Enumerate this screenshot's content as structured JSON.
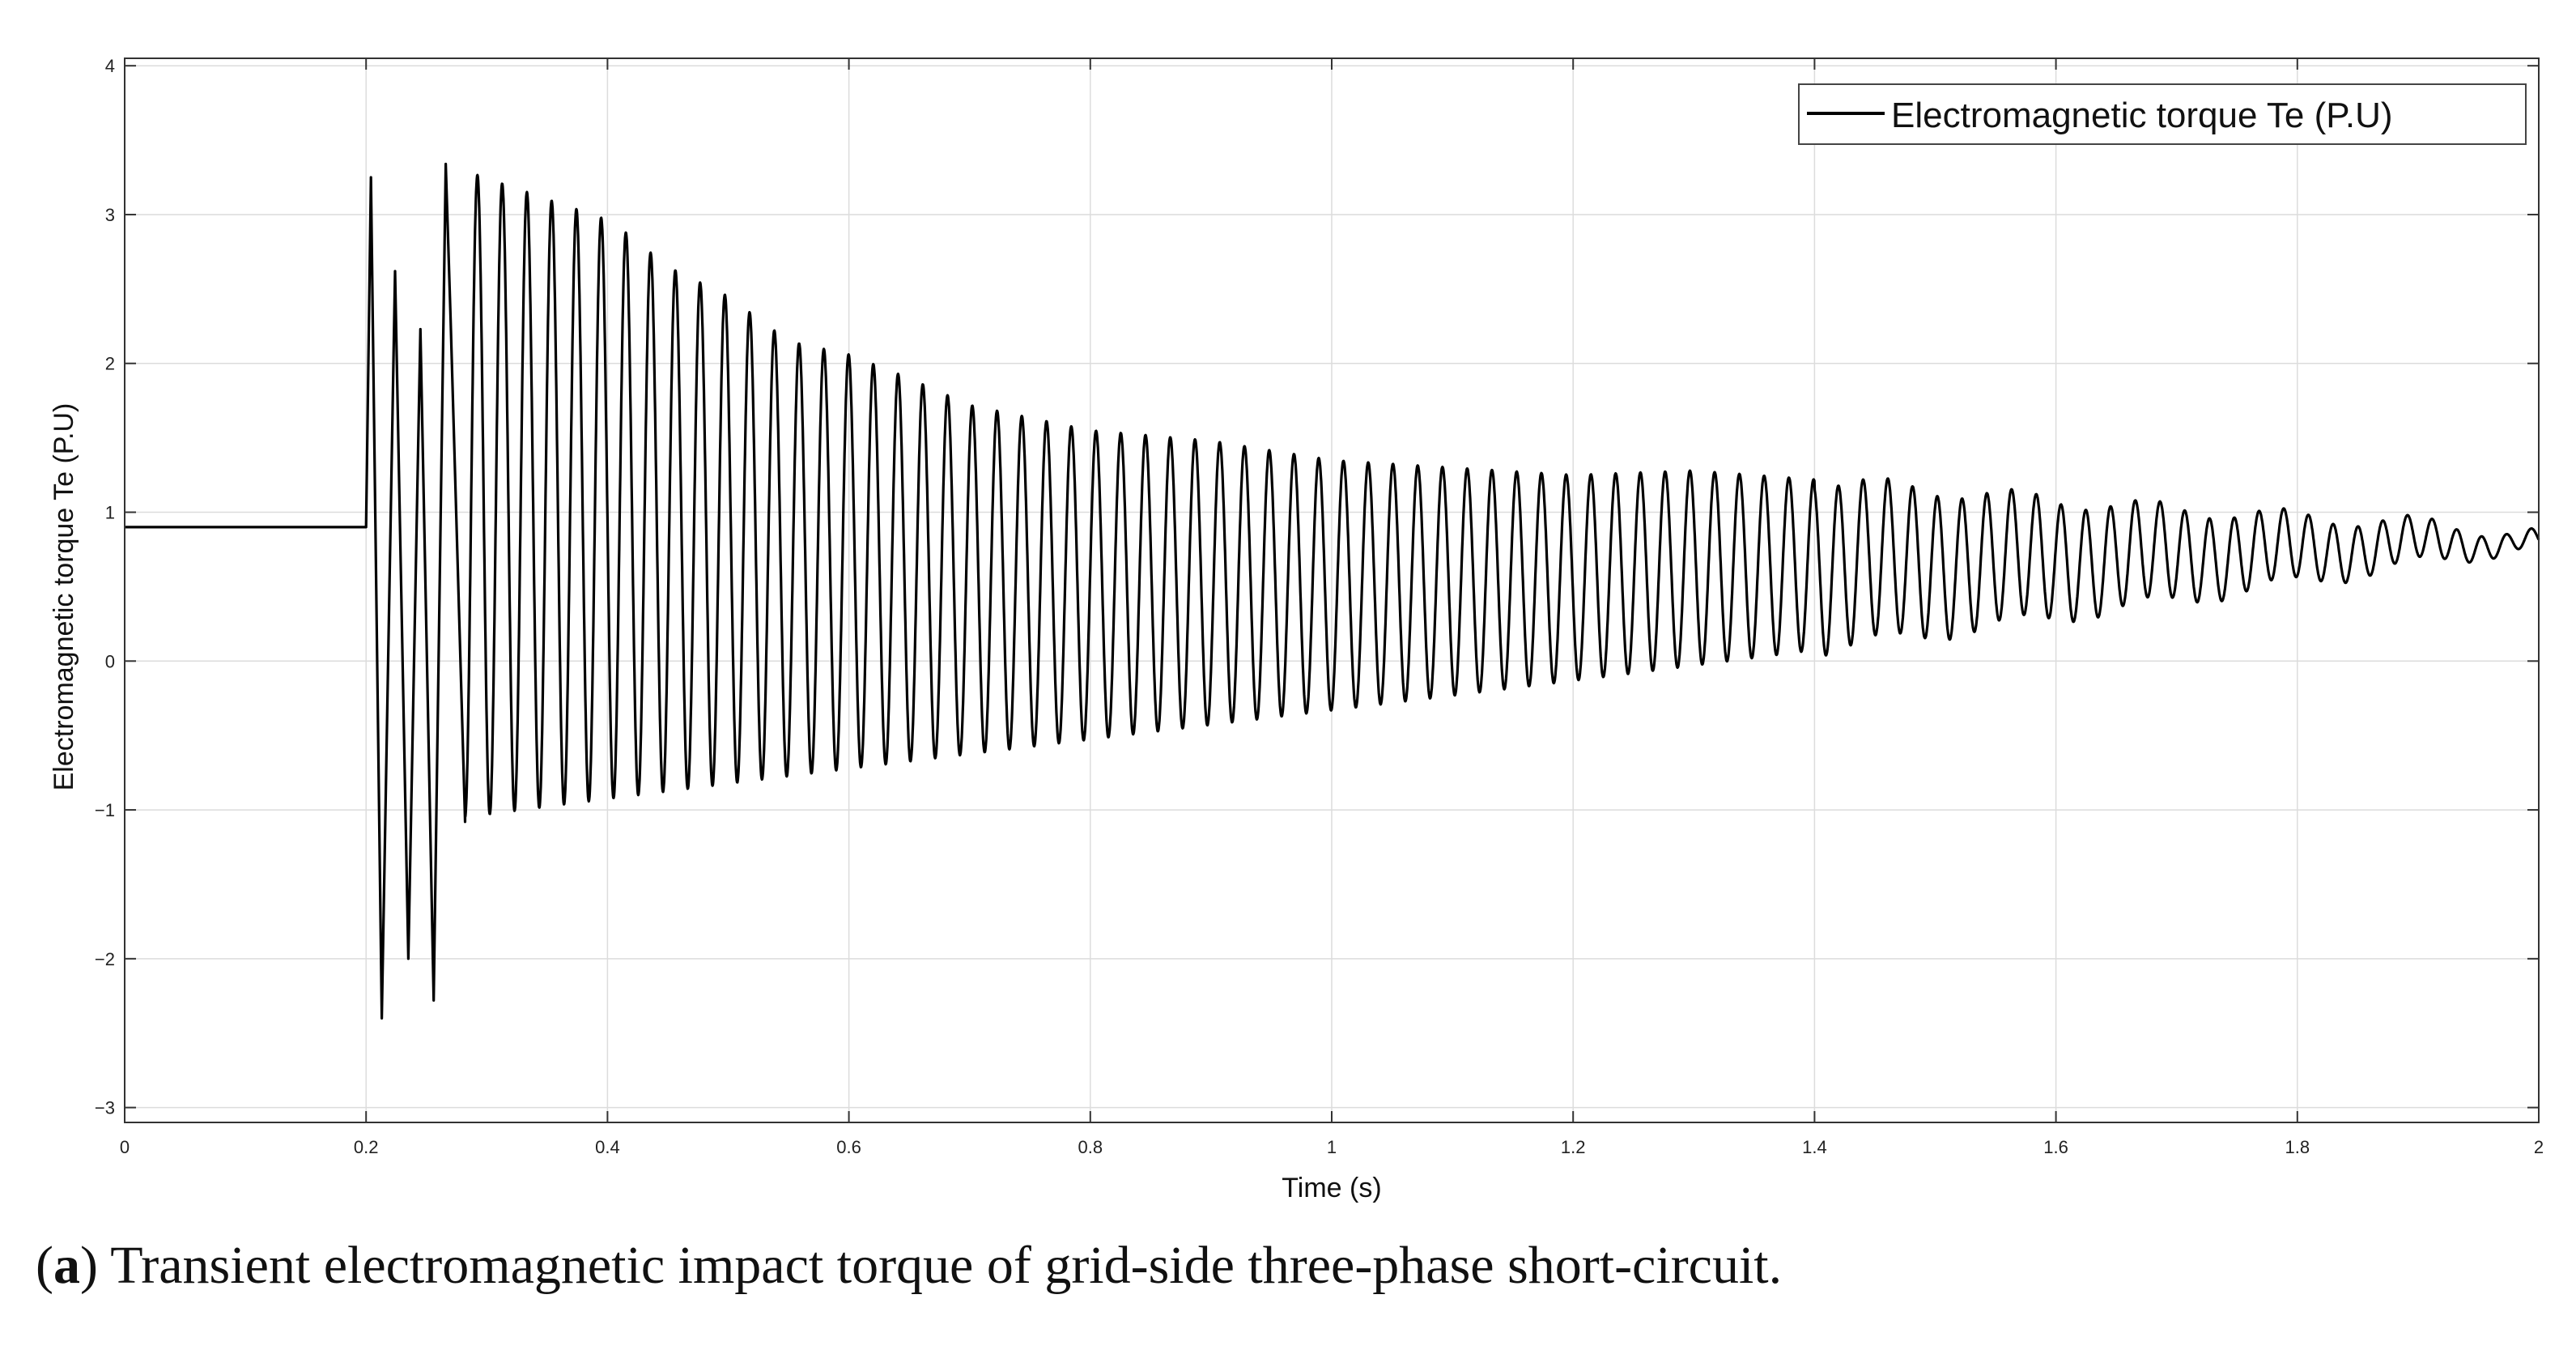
{
  "chart_data": {
    "type": "line",
    "title": "",
    "xlabel": "Time  (s)",
    "ylabel": "Electromagnetic torque  Te (P.U)",
    "xlim": [
      0,
      2
    ],
    "ylim": [
      -3.1,
      4.05
    ],
    "grid": true,
    "legend_position": "top-right",
    "x_ticks": [
      0,
      0.2,
      0.4,
      0.6,
      0.8,
      1,
      1.2,
      1.4,
      1.6,
      1.8,
      2
    ],
    "x_tick_labels": [
      "0",
      "0.2",
      "0.4",
      "0.6",
      "0.8",
      "1",
      "1.2",
      "1.4",
      "1.6",
      "1.8",
      "2"
    ],
    "y_ticks": [
      -3,
      -2,
      -1,
      0,
      1,
      2,
      3,
      4
    ],
    "y_tick_labels": [
      "−3",
      "−2",
      "−1",
      "0",
      "1",
      "2",
      "3",
      "4"
    ],
    "series": [
      {
        "name": "Electromagnetic torque  Te (P.U)",
        "color": "#000000",
        "x": [
          0,
          0.2,
          0.2,
          0.204,
          0.213,
          0.224,
          0.235,
          0.245,
          0.256,
          0.266,
          0.27,
          0.282,
          0.29,
          0.3,
          0.31,
          0.32,
          0.33,
          0.34,
          0.35,
          0.36,
          0.37,
          0.38,
          0.4,
          0.45,
          0.5,
          0.55,
          0.6,
          0.65,
          0.7,
          0.8,
          0.9,
          1.0,
          1.1,
          1.2,
          1.3,
          1.4,
          1.5,
          1.6,
          1.7,
          1.8,
          1.9,
          2.0
        ],
        "y": [
          0.9,
          0.9,
          0.9,
          3.25,
          -2.4,
          2.62,
          -2.0,
          2.23,
          -2.28,
          3.34,
          2.3,
          -1.08,
          3.33,
          -1.02,
          3.32,
          -0.98,
          3.2,
          -0.96,
          3.14,
          -0.72,
          3.17,
          -0.7,
          2.98,
          2.65,
          2.45,
          2.15,
          2.06,
          1.9,
          1.72,
          1.55,
          1.48,
          1.35,
          1.3,
          1.25,
          1.28,
          1.22,
          1.15,
          1.08,
          1.02,
          0.97,
          0.93,
          0.85
        ]
      }
    ],
    "annotations": [],
    "caption_label": "a",
    "caption_text": "Transient electromagnetic impact torque of grid-side three-phase short-circuit."
  }
}
